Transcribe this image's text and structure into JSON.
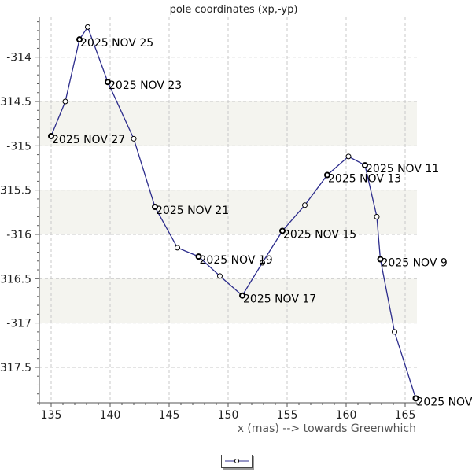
{
  "chart_data": {
    "type": "line",
    "title": "pole coordinates (xp,-yp)",
    "xlabel": "x (mas) --> towards Greenwhich",
    "ylabel": "",
    "xlim": [
      134,
      166
    ],
    "ylim": [
      -317.9,
      -313.55
    ],
    "xticks": [
      135,
      140,
      145,
      150,
      155,
      160,
      165
    ],
    "yticks": [
      -314,
      -314.5,
      -315,
      -315.5,
      -316,
      -316.5,
      -317,
      -317.5
    ],
    "ytick_labels": [
      "-314",
      "-314.5",
      "-315",
      "-315.5",
      "-316",
      "-316.5",
      "-317",
      "-317.5"
    ],
    "grid": true,
    "series": [
      {
        "name": "",
        "color": "#2c2c8c",
        "points": [
          {
            "x": 165.9,
            "y": -317.85,
            "label": "2025 NOV"
          },
          {
            "x": 164.1,
            "y": -317.1,
            "label": ""
          },
          {
            "x": 162.9,
            "y": -316.28,
            "label": "2025 NOV 9"
          },
          {
            "x": 162.6,
            "y": -315.8,
            "label": ""
          },
          {
            "x": 161.6,
            "y": -315.22,
            "label": "2025 NOV 11"
          },
          {
            "x": 160.2,
            "y": -315.12,
            "label": ""
          },
          {
            "x": 158.4,
            "y": -315.33,
            "label": "2025 NOV 13"
          },
          {
            "x": 156.5,
            "y": -315.67,
            "label": ""
          },
          {
            "x": 154.6,
            "y": -315.96,
            "label": "2025 NOV 15"
          },
          {
            "x": 152.9,
            "y": -316.32,
            "label": ""
          },
          {
            "x": 151.2,
            "y": -316.69,
            "label": "2025 NOV 17"
          },
          {
            "x": 149.3,
            "y": -316.47,
            "label": ""
          },
          {
            "x": 147.5,
            "y": -316.25,
            "label": "2025 NOV 19"
          },
          {
            "x": 145.7,
            "y": -316.15,
            "label": ""
          },
          {
            "x": 143.8,
            "y": -315.69,
            "label": "2025 NOV 21"
          },
          {
            "x": 142.0,
            "y": -314.92,
            "label": ""
          },
          {
            "x": 139.8,
            "y": -314.28,
            "label": "2025 NOV 23"
          },
          {
            "x": 138.1,
            "y": -313.66,
            "label": ""
          },
          {
            "x": 137.4,
            "y": -313.8,
            "label": "2025 NOV 25"
          },
          {
            "x": 136.2,
            "y": -314.5,
            "label": ""
          },
          {
            "x": 135.0,
            "y": -314.89,
            "label": "2025 NOV 27"
          }
        ]
      }
    ]
  }
}
